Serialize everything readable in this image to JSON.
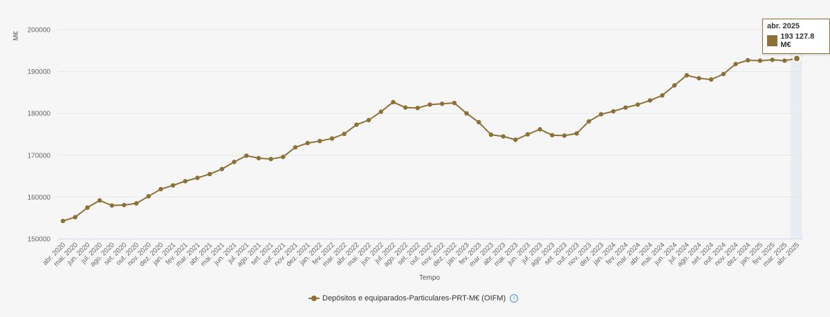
{
  "colors": {
    "series": "#8c7035",
    "highlight_band": "#e8ecf3",
    "grid": "#e6e6e6",
    "info_icon": "#4a90d9"
  },
  "chart_data": {
    "type": "line",
    "ylabel": "M€",
    "xlabel": "Tempo",
    "ylim": [
      150000,
      200000
    ],
    "yticks": [
      150000,
      160000,
      170000,
      180000,
      190000,
      200000
    ],
    "grid": true,
    "legend_position": "bottom-center",
    "categories": [
      "abr. 2020",
      "mai. 2020",
      "jun. 2020",
      "jul. 2020",
      "ago. 2020",
      "set. 2020",
      "out. 2020",
      "nov. 2020",
      "dez. 2020",
      "jan. 2021",
      "fev. 2021",
      "mar. 2021",
      "abr. 2021",
      "mai. 2021",
      "jun. 2021",
      "jul. 2021",
      "ago. 2021",
      "set. 2021",
      "out. 2021",
      "nov. 2021",
      "dez. 2021",
      "jan. 2022",
      "fev. 2022",
      "mar. 2022",
      "abr. 2022",
      "mai. 2022",
      "jun. 2022",
      "jul. 2022",
      "ago. 2022",
      "set. 2022",
      "out. 2022",
      "nov. 2022",
      "dez. 2022",
      "jan. 2023",
      "fev. 2023",
      "mar. 2023",
      "abr. 2023",
      "mai. 2023",
      "jun. 2023",
      "jul. 2023",
      "ago. 2023",
      "set. 2023",
      "out. 2023",
      "nov. 2023",
      "dez. 2023",
      "jan. 2024",
      "fev. 2024",
      "mar. 2024",
      "abr. 2024",
      "mai. 2024",
      "jun. 2024",
      "jul. 2024",
      "ago. 2024",
      "set. 2024",
      "out. 2024",
      "nov. 2024",
      "dez. 2024",
      "jan. 2025",
      "fev. 2025",
      "mar. 2025",
      "abr. 2025"
    ],
    "series": [
      {
        "name": "Depósitos e equiparados-Particulares-PRT-M€ (OIFM)",
        "values": [
          154300,
          155200,
          157500,
          159200,
          158000,
          158100,
          158500,
          160200,
          161900,
          162800,
          163800,
          164600,
          165500,
          166700,
          168400,
          169900,
          169300,
          169100,
          169600,
          171900,
          172900,
          173400,
          174000,
          175100,
          177300,
          178400,
          180400,
          182700,
          181400,
          181300,
          182100,
          182300,
          182500,
          180000,
          177900,
          174900,
          174500,
          173700,
          175000,
          176200,
          174800,
          174700,
          175200,
          178100,
          179800,
          180500,
          181400,
          182100,
          183100,
          184300,
          186700,
          189100,
          188400,
          188100,
          189400,
          191800,
          192700,
          192600,
          192800,
          192600,
          193127.8
        ]
      }
    ],
    "highlight": {
      "category": "abr. 2025"
    }
  },
  "tooltip": {
    "title": "abr. 2025",
    "value": "193 127.8 M€"
  },
  "legend": {
    "label": "Depósitos e equiparados-Particulares-PRT-M€ (OIFM)",
    "info_glyph": "i"
  }
}
